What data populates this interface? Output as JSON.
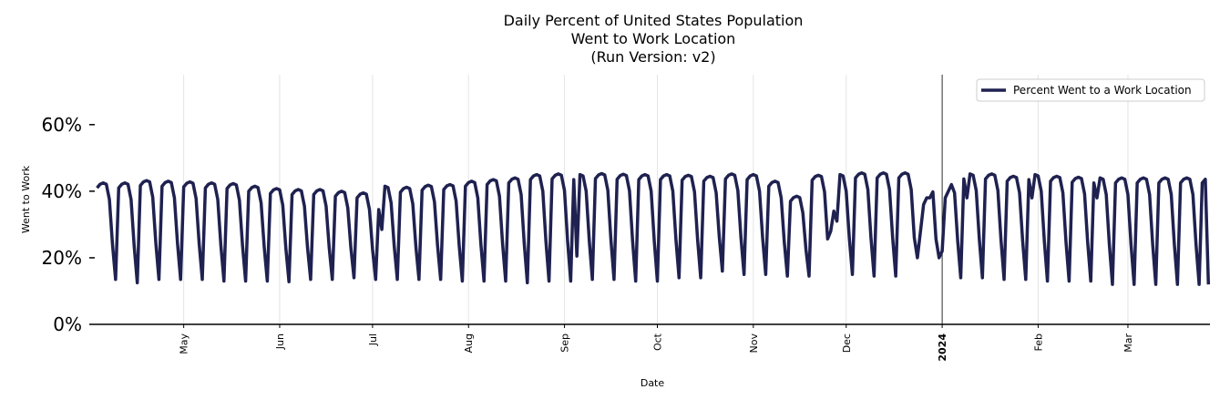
{
  "chart_data": {
    "type": "line",
    "title_lines": [
      "Daily Percent of United States Population",
      "Went to Work Location",
      "(Run Version: v2)"
    ],
    "xlabel": "Date",
    "ylabel": "Went to Work",
    "ylim": [
      0,
      75
    ],
    "yticks": [
      0,
      20,
      40,
      60
    ],
    "ytick_labels": [
      "0%",
      "20%",
      "40%",
      "60%"
    ],
    "xlim_days": [
      -2.5,
      359.5
    ],
    "x_origin_date": "2023-04-03",
    "xticks": [
      {
        "label": "May",
        "day": 28,
        "bold": false
      },
      {
        "label": "Jun",
        "day": 59,
        "bold": false
      },
      {
        "label": "Jul",
        "day": 89,
        "bold": false
      },
      {
        "label": "Aug",
        "day": 120,
        "bold": false
      },
      {
        "label": "Sep",
        "day": 151,
        "bold": false
      },
      {
        "label": "Oct",
        "day": 181,
        "bold": false
      },
      {
        "label": "Nov",
        "day": 212,
        "bold": false
      },
      {
        "label": "Dec",
        "day": 242,
        "bold": false
      },
      {
        "label": "2024",
        "day": 273,
        "bold": true
      },
      {
        "label": "Feb",
        "day": 304,
        "bold": false
      },
      {
        "label": "Mar",
        "day": 333,
        "bold": false
      }
    ],
    "year_marker_day": 273,
    "legend": {
      "label": "Percent Went to a Work Location",
      "placement": "top-right"
    },
    "series": [
      {
        "name": "Percent Went to a Work Location",
        "color": "#1f2150",
        "weekday_peaks": [
          42.5,
          42.5,
          43.2,
          43.0,
          42.8,
          42.5,
          42.3,
          41.5,
          40.8,
          40.5,
          40.5,
          40.0,
          39.5,
          41.5,
          41.2,
          41.8,
          42.0,
          43.0,
          43.5,
          44.0,
          45.0,
          45.2,
          45.0,
          45.3,
          45.1,
          45.0,
          45.0,
          44.8,
          44.5,
          45.2,
          45.0,
          43.0,
          38.5,
          44.8,
          45.0,
          45.5,
          45.5,
          45.5,
          44.8,
          44.5,
          45.2,
          45.2,
          44.5,
          45.0,
          44.5,
          44.2,
          44.0
        ],
        "weekend_lows": [
          13.5,
          12.5,
          13.5,
          13.5,
          13.5,
          13.0,
          13.0,
          13.0,
          12.8,
          13.5,
          13.5,
          14.0,
          13.5,
          13.5,
          13.5,
          13.5,
          13.0,
          13.0,
          13.0,
          12.5,
          13.0,
          13.0,
          13.5,
          13.5,
          13.0,
          13.0,
          14.0,
          14.0,
          16.0,
          15.0,
          15.0,
          14.5,
          14.5,
          14.5,
          15.0,
          14.5,
          14.5,
          14.5,
          14.5,
          14.0,
          14.0,
          13.5,
          13.5,
          13.0,
          13.0,
          13.0,
          12.0
        ],
        "holiday_dips": [
          {
            "day": 91,
            "value": 34.5
          },
          {
            "day": 92,
            "value": 28.5
          },
          {
            "day": 155,
            "value": 20.5
          },
          {
            "day": 237,
            "value": 28.0
          },
          {
            "day": 238,
            "value": 34.0
          },
          {
            "day": 239,
            "value": 31.0
          },
          {
            "day": 265,
            "value": 20.0
          },
          {
            "day": 266,
            "value": 28.0
          },
          {
            "day": 267,
            "value": 36.0
          },
          {
            "day": 268,
            "value": 38.0
          },
          {
            "day": 269,
            "value": 38.0
          },
          {
            "day": 272,
            "value": 20.0
          },
          {
            "day": 273,
            "value": 22.0
          },
          {
            "day": 274,
            "value": 38.0
          },
          {
            "day": 275,
            "value": 40.0
          },
          {
            "day": 276,
            "value": 42.0
          },
          {
            "day": 281,
            "value": 38.0
          },
          {
            "day": 302,
            "value": 38.0
          },
          {
            "day": 323,
            "value": 38.0
          }
        ],
        "end_value": 12.0
      }
    ]
  }
}
